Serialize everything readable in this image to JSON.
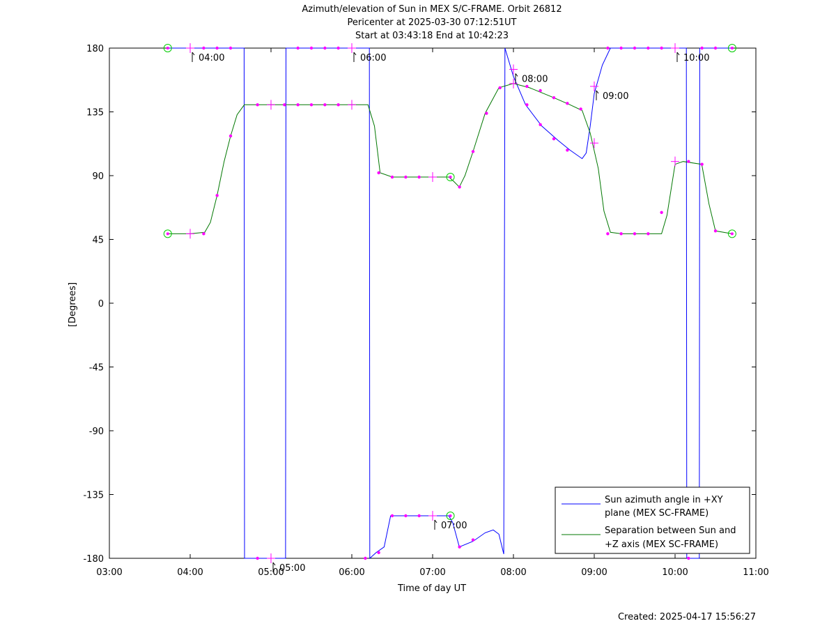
{
  "chart_data": {
    "type": "line",
    "title_lines": [
      "Azimuth/elevation of Sun in MEX S/C-FRAME.  Orbit 26812",
      "Pericenter at 2025-03-30 07:12:51UT",
      "Start at 03:43:18 End at 10:42:23"
    ],
    "xlabel": "Time of day UT",
    "ylabel": "[Degrees]",
    "xlim": [
      3.0,
      11.0
    ],
    "ylim": [
      -180,
      180
    ],
    "x_ticks": [
      {
        "v": 3,
        "label": "03:00"
      },
      {
        "v": 4,
        "label": "04:00"
      },
      {
        "v": 5,
        "label": "05:00"
      },
      {
        "v": 6,
        "label": "06:00"
      },
      {
        "v": 7,
        "label": "07:00"
      },
      {
        "v": 8,
        "label": "08:00"
      },
      {
        "v": 9,
        "label": "09:00"
      },
      {
        "v": 10,
        "label": "10:00"
      },
      {
        "v": 11,
        "label": "11:00"
      }
    ],
    "y_ticks": [
      {
        "v": 180,
        "label": "180"
      },
      {
        "v": 135,
        "label": "135"
      },
      {
        "v": 90,
        "label": "90"
      },
      {
        "v": 45,
        "label": "45"
      },
      {
        "v": 0,
        "label": "0"
      },
      {
        "v": -45,
        "label": "-45"
      },
      {
        "v": -90,
        "label": "-90"
      },
      {
        "v": -135,
        "label": "-135"
      },
      {
        "v": -180,
        "label": "-180"
      }
    ],
    "grid": false,
    "legend_position": "bottom-right",
    "footer": "Created: 2025-04-17 15:56:27",
    "series": [
      {
        "name": "Sun azimuth angle in +XY plane (MEX SC-FRAME)",
        "legend_lines": [
          "Sun azimuth angle in +XY",
          "plane (MEX SC-FRAME)"
        ],
        "color": "#0000ff",
        "points": [
          [
            3.722,
            180
          ],
          [
            4.0,
            180
          ],
          [
            4.667,
            180
          ],
          [
            4.672,
            -180
          ],
          [
            5.0,
            -180
          ],
          [
            5.18,
            -180
          ],
          [
            5.185,
            180
          ],
          [
            6.0,
            180
          ],
          [
            6.217,
            180
          ],
          [
            6.222,
            -180
          ],
          [
            6.3,
            -176
          ],
          [
            6.4,
            -172
          ],
          [
            6.48,
            -150
          ],
          [
            6.5,
            -150
          ],
          [
            7.0,
            -150
          ],
          [
            7.2,
            -150
          ],
          [
            7.25,
            -155
          ],
          [
            7.33,
            -172
          ],
          [
            7.5,
            -168
          ],
          [
            7.65,
            -162
          ],
          [
            7.75,
            -160
          ],
          [
            7.82,
            -163
          ],
          [
            7.88,
            -177
          ],
          [
            7.895,
            180
          ],
          [
            8.0,
            160
          ],
          [
            8.15,
            140
          ],
          [
            8.35,
            125
          ],
          [
            8.55,
            115
          ],
          [
            8.7,
            108
          ],
          [
            8.85,
            102
          ],
          [
            8.9,
            106
          ],
          [
            8.95,
            125
          ],
          [
            9.0,
            148
          ],
          [
            9.1,
            168
          ],
          [
            9.2,
            180
          ],
          [
            10.0,
            180
          ],
          [
            10.14,
            180
          ],
          [
            10.145,
            -180
          ],
          [
            10.3,
            -180
          ],
          [
            10.305,
            180
          ],
          [
            10.7,
            180
          ]
        ],
        "markers": [
          [
            4.167,
            180
          ],
          [
            4.333,
            180
          ],
          [
            4.5,
            180
          ],
          [
            5.333,
            180
          ],
          [
            5.5,
            180
          ],
          [
            5.667,
            180
          ],
          [
            5.833,
            180
          ],
          [
            6.167,
            -180
          ],
          [
            6.333,
            -176
          ],
          [
            6.5,
            -150
          ],
          [
            6.667,
            -150
          ],
          [
            6.833,
            -150
          ],
          [
            7.333,
            -172
          ],
          [
            7.5,
            -167
          ],
          [
            8.167,
            140
          ],
          [
            8.333,
            126
          ],
          [
            8.5,
            116
          ],
          [
            8.667,
            108
          ],
          [
            9.167,
            180
          ],
          [
            9.333,
            180
          ],
          [
            9.5,
            180
          ],
          [
            9.667,
            180
          ],
          [
            9.833,
            180
          ],
          [
            10.167,
            -180
          ],
          [
            10.333,
            180
          ],
          [
            10.5,
            180
          ],
          [
            4.833,
            -180
          ]
        ],
        "hour_marks": [
          [
            4.0,
            180
          ],
          [
            5.0,
            -180
          ],
          [
            6.0,
            180
          ],
          [
            7.0,
            -150
          ],
          [
            8.0,
            165
          ],
          [
            9.0,
            153
          ],
          [
            10.0,
            180
          ]
        ],
        "endpoints": [
          [
            3.722,
            180
          ],
          [
            10.706,
            180
          ]
        ]
      },
      {
        "name": "Separation between Sun and +Z axis (MEX SC-FRAME)",
        "legend_lines": [
          "Separation between Sun and",
          "+Z axis (MEX SC-FRAME)"
        ],
        "color": "#007700",
        "points": [
          [
            3.722,
            49
          ],
          [
            4.0,
            49
          ],
          [
            4.18,
            50
          ],
          [
            4.25,
            57
          ],
          [
            4.333,
            76
          ],
          [
            4.42,
            100
          ],
          [
            4.5,
            118
          ],
          [
            4.58,
            133
          ],
          [
            4.67,
            140
          ],
          [
            5.0,
            140
          ],
          [
            6.0,
            140
          ],
          [
            6.2,
            140
          ],
          [
            6.28,
            125
          ],
          [
            6.35,
            92
          ],
          [
            6.5,
            89
          ],
          [
            7.0,
            89
          ],
          [
            7.2,
            89
          ],
          [
            7.26,
            86
          ],
          [
            7.33,
            82
          ],
          [
            7.4,
            90
          ],
          [
            7.5,
            107
          ],
          [
            7.65,
            134
          ],
          [
            7.82,
            152
          ],
          [
            8.0,
            155
          ],
          [
            8.2,
            152
          ],
          [
            8.5,
            145
          ],
          [
            8.7,
            140
          ],
          [
            8.85,
            136
          ],
          [
            8.95,
            120
          ],
          [
            9.05,
            95
          ],
          [
            9.12,
            65
          ],
          [
            9.2,
            50
          ],
          [
            9.333,
            49
          ],
          [
            9.833,
            49
          ],
          [
            9.9,
            62
          ],
          [
            10.0,
            98
          ],
          [
            10.1,
            100
          ],
          [
            10.33,
            98
          ],
          [
            10.42,
            70
          ],
          [
            10.5,
            51
          ],
          [
            10.706,
            49
          ]
        ],
        "markers": [
          [
            4.167,
            49
          ],
          [
            4.333,
            76
          ],
          [
            4.5,
            118
          ],
          [
            4.833,
            140
          ],
          [
            5.167,
            140
          ],
          [
            5.333,
            140
          ],
          [
            5.5,
            140
          ],
          [
            5.667,
            140
          ],
          [
            5.833,
            140
          ],
          [
            6.333,
            92
          ],
          [
            6.5,
            89
          ],
          [
            6.667,
            89
          ],
          [
            6.833,
            89
          ],
          [
            7.333,
            82
          ],
          [
            7.5,
            107
          ],
          [
            7.667,
            134
          ],
          [
            7.833,
            152
          ],
          [
            8.167,
            153
          ],
          [
            8.333,
            150
          ],
          [
            8.5,
            145
          ],
          [
            8.667,
            141
          ],
          [
            8.833,
            137
          ],
          [
            9.167,
            49
          ],
          [
            9.333,
            49
          ],
          [
            9.5,
            49
          ],
          [
            9.667,
            49
          ],
          [
            9.833,
            64
          ],
          [
            10.167,
            100
          ],
          [
            10.333,
            98
          ],
          [
            10.5,
            51
          ]
        ],
        "hour_marks": [
          [
            4.0,
            49
          ],
          [
            5.0,
            140
          ],
          [
            6.0,
            140
          ],
          [
            7.0,
            89
          ],
          [
            8.0,
            155
          ],
          [
            9.0,
            113
          ],
          [
            10.0,
            100
          ]
        ],
        "endpoints": [
          [
            3.722,
            49
          ],
          [
            10.706,
            49
          ],
          [
            7.22,
            89
          ],
          [
            7.22,
            -150
          ]
        ]
      }
    ],
    "annotations": [
      {
        "label": "04:00",
        "x": 4.0,
        "y": 180
      },
      {
        "label": "05:00",
        "x": 5.0,
        "y": -180
      },
      {
        "label": "06:00",
        "x": 6.0,
        "y": 180
      },
      {
        "label": "07:00",
        "x": 7.0,
        "y": -150
      },
      {
        "label": "08:00",
        "x": 8.0,
        "y": 165
      },
      {
        "label": "09:00",
        "x": 9.0,
        "y": 153
      },
      {
        "label": "10:00",
        "x": 10.0,
        "y": 180
      }
    ]
  }
}
